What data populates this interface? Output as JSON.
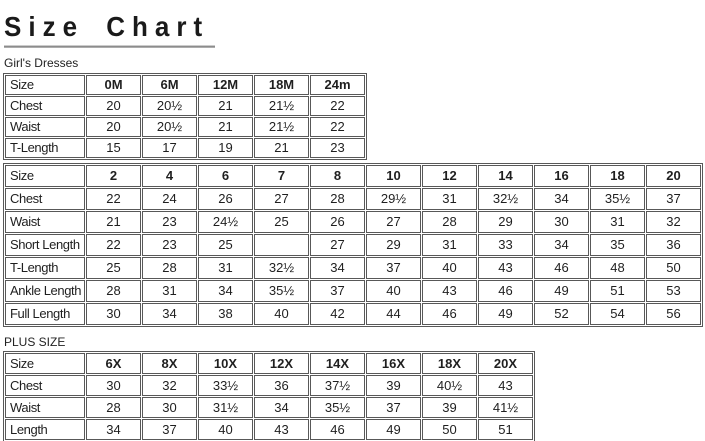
{
  "page": {
    "title": "Size Chart"
  },
  "colors": {
    "text": "#1f1f1f",
    "table_border": "#585858",
    "title_underline": "#8c8c8c",
    "background": "#ffffff"
  },
  "tables": [
    {
      "caption": "Girl's Dresses",
      "header_label": "Size",
      "columns": [
        "0M",
        "6M",
        "12M",
        "18M",
        "24m"
      ],
      "rows": [
        {
          "label": "Chest",
          "values": [
            "20",
            "20½",
            "21",
            "21½",
            "22"
          ]
        },
        {
          "label": "Waist",
          "values": [
            "20",
            "20½",
            "21",
            "21½",
            "22"
          ]
        },
        {
          "label": "T-Length",
          "values": [
            "15",
            "17",
            "19",
            "21",
            "23"
          ]
        }
      ]
    },
    {
      "caption": "",
      "header_label": "Size",
      "columns": [
        "2",
        "4",
        "6",
        "7",
        "8",
        "10",
        "12",
        "14",
        "16",
        "18",
        "20"
      ],
      "rows": [
        {
          "label": "Chest",
          "values": [
            "22",
            "24",
            "26",
            "27",
            "28",
            "29½",
            "31",
            "32½",
            "34",
            "35½",
            "37"
          ]
        },
        {
          "label": "Waist",
          "values": [
            "21",
            "23",
            "24½",
            "25",
            "26",
            "27",
            "28",
            "29",
            "30",
            "31",
            "32"
          ]
        },
        {
          "label": "Short Length",
          "values": [
            "22",
            "23",
            "25",
            "",
            "27",
            "29",
            "31",
            "33",
            "34",
            "35",
            "36"
          ]
        },
        {
          "label": "T-Length",
          "values": [
            "25",
            "28",
            "31",
            "32½",
            "34",
            "37",
            "40",
            "43",
            "46",
            "48",
            "50"
          ]
        },
        {
          "label": "Ankle Length",
          "values": [
            "28",
            "31",
            "34",
            "35½",
            "37",
            "40",
            "43",
            "46",
            "49",
            "51",
            "53"
          ]
        },
        {
          "label": "Full Length",
          "values": [
            "30",
            "34",
            "38",
            "40",
            "42",
            "44",
            "46",
            "49",
            "52",
            "54",
            "56"
          ]
        }
      ]
    },
    {
      "caption": "PLUS SIZE",
      "header_label": "Size",
      "columns": [
        "6X",
        "8X",
        "10X",
        "12X",
        "14X",
        "16X",
        "18X",
        "20X"
      ],
      "rows": [
        {
          "label": "Chest",
          "values": [
            "30",
            "32",
            "33½",
            "36",
            "37½",
            "39",
            "40½",
            "43"
          ]
        },
        {
          "label": "Waist",
          "values": [
            "28",
            "30",
            "31½",
            "34",
            "35½",
            "37",
            "39",
            "41½"
          ]
        },
        {
          "label": "Length",
          "values": [
            "34",
            "37",
            "40",
            "43",
            "46",
            "49",
            "50",
            "51"
          ]
        }
      ]
    }
  ]
}
